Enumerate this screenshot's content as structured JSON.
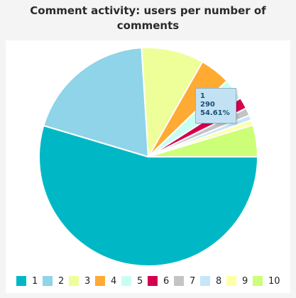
{
  "chart_data": {
    "type": "pie",
    "title_lines": [
      "Comment activity: users per number of",
      "comments"
    ],
    "categories": [
      "1",
      "2",
      "3",
      "4",
      "5",
      "6",
      "7",
      "8",
      "9",
      "10"
    ],
    "values": [
      290,
      103,
      49,
      24,
      17,
      9,
      6,
      4,
      4,
      25
    ],
    "colors": [
      "#00b8c5",
      "#8fd4e8",
      "#eeff99",
      "#ffaa33",
      "#c8fff2",
      "#d4004e",
      "#c4c4c4",
      "#c6e6f9",
      "#ffffa6",
      "#ccff77"
    ],
    "start_angle_deg": 0,
    "legend_placement": "bottom",
    "tooltip": {
      "category": "1",
      "value": "290",
      "percent": "54.61%"
    }
  }
}
